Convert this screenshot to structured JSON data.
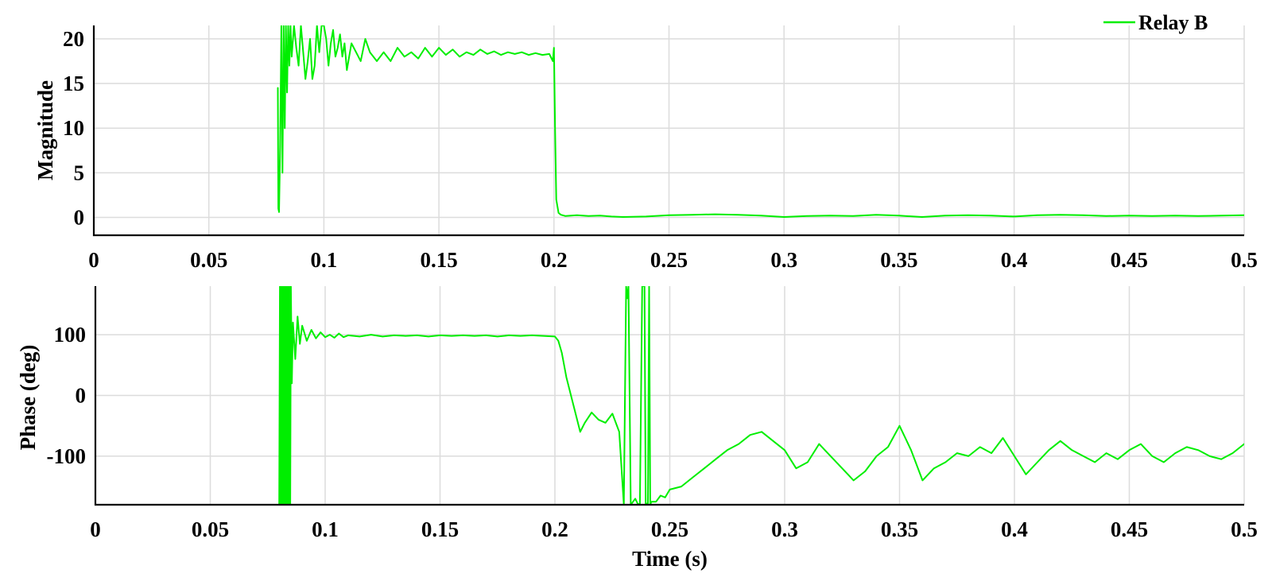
{
  "chart_data": [
    {
      "type": "line",
      "ylabel": "Magnitude",
      "xlabel": "",
      "xlim": [
        0,
        0.5
      ],
      "ylim": [
        -2,
        21.5
      ],
      "x_ticks": [
        "0",
        "0.05",
        "0.1",
        "0.15",
        "0.2",
        "0.25",
        "0.3",
        "0.35",
        "0.4",
        "0.45",
        "0.5"
      ],
      "y_ticks": [
        "0",
        "5",
        "10",
        "15",
        "20"
      ],
      "grid": true,
      "legend": "top-right",
      "series": [
        {
          "name": "Relay B",
          "color": "#00ee00",
          "x": [
            0.08,
            0.0802,
            0.0805,
            0.081,
            0.0815,
            0.082,
            0.0825,
            0.083,
            0.0835,
            0.084,
            0.0845,
            0.085,
            0.0855,
            0.086,
            0.087,
            0.088,
            0.089,
            0.09,
            0.091,
            0.092,
            0.093,
            0.094,
            0.095,
            0.096,
            0.097,
            0.098,
            0.099,
            0.1,
            0.101,
            0.102,
            0.103,
            0.104,
            0.105,
            0.106,
            0.107,
            0.108,
            0.109,
            0.11,
            0.112,
            0.114,
            0.116,
            0.118,
            0.12,
            0.123,
            0.126,
            0.129,
            0.132,
            0.135,
            0.138,
            0.141,
            0.144,
            0.147,
            0.15,
            0.153,
            0.156,
            0.159,
            0.162,
            0.165,
            0.168,
            0.171,
            0.174,
            0.177,
            0.18,
            0.183,
            0.186,
            0.189,
            0.192,
            0.195,
            0.198,
            0.1995,
            0.2,
            0.2005,
            0.201,
            0.202,
            0.203,
            0.205,
            0.21,
            0.215,
            0.22,
            0.225,
            0.23,
            0.24,
            0.25,
            0.26,
            0.27,
            0.28,
            0.29,
            0.3,
            0.31,
            0.32,
            0.33,
            0.34,
            0.35,
            0.36,
            0.37,
            0.38,
            0.39,
            0.4,
            0.41,
            0.42,
            0.43,
            0.44,
            0.45,
            0.46,
            0.47,
            0.48,
            0.49,
            0.5
          ],
          "y": [
            14.5,
            1,
            0.6,
            8,
            21.5,
            5,
            21.5,
            10,
            21.5,
            14,
            21.5,
            17,
            21.5,
            18,
            21.5,
            19,
            17,
            21.5,
            18.5,
            15.5,
            17.5,
            20,
            15.5,
            17,
            21.5,
            18.5,
            21.5,
            21.5,
            20,
            17,
            19.5,
            21,
            18,
            19,
            20.5,
            18,
            19.5,
            16.5,
            19.5,
            18.5,
            17.5,
            20,
            18.5,
            17.5,
            18.5,
            17.5,
            19,
            18,
            18.5,
            17.8,
            19,
            18,
            19,
            18.2,
            18.8,
            18,
            18.5,
            18.2,
            18.8,
            18.3,
            18.6,
            18.2,
            18.5,
            18.3,
            18.5,
            18.2,
            18.4,
            18.2,
            18.3,
            17.5,
            19,
            10,
            2,
            0.5,
            0.3,
            0.15,
            0.25,
            0.15,
            0.2,
            0.1,
            0.05,
            0.1,
            0.25,
            0.3,
            0.35,
            0.3,
            0.2,
            0.05,
            0.15,
            0.2,
            0.15,
            0.3,
            0.2,
            0.05,
            0.2,
            0.25,
            0.2,
            0.1,
            0.25,
            0.3,
            0.25,
            0.15,
            0.2,
            0.15,
            0.2,
            0.15,
            0.2,
            0.25
          ]
        }
      ]
    },
    {
      "type": "line",
      "ylabel": "Phase (deg)",
      "xlabel": "Time (s)",
      "xlim": [
        0,
        0.5
      ],
      "ylim": [
        -180,
        180
      ],
      "x_ticks": [
        "0",
        "0.05",
        "0.1",
        "0.15",
        "0.2",
        "0.25",
        "0.3",
        "0.35",
        "0.4",
        "0.45",
        "0.5"
      ],
      "y_ticks": [
        "-100",
        "0",
        "100"
      ],
      "grid": true,
      "series": [
        {
          "name": "",
          "color": "#00ee00",
          "x": [
            0.08,
            0.0803,
            0.0806,
            0.0809,
            0.0812,
            0.0815,
            0.0818,
            0.0821,
            0.0824,
            0.0827,
            0.083,
            0.0833,
            0.0836,
            0.0839,
            0.0842,
            0.0845,
            0.0848,
            0.0851,
            0.0855,
            0.086,
            0.087,
            0.088,
            0.089,
            0.09,
            0.092,
            0.094,
            0.096,
            0.098,
            0.1,
            0.102,
            0.104,
            0.106,
            0.108,
            0.11,
            0.115,
            0.12,
            0.125,
            0.13,
            0.135,
            0.14,
            0.145,
            0.15,
            0.155,
            0.16,
            0.165,
            0.17,
            0.175,
            0.18,
            0.185,
            0.19,
            0.195,
            0.2,
            0.2015,
            0.203,
            0.205,
            0.207,
            0.209,
            0.211,
            0.213,
            0.216,
            0.219,
            0.222,
            0.225,
            0.228,
            0.23,
            0.231,
            0.2315,
            0.232,
            0.233,
            0.234,
            0.235,
            0.236,
            0.237,
            0.238,
            0.239,
            0.2395,
            0.24,
            0.2405,
            0.241,
            0.2415,
            0.242,
            0.244,
            0.246,
            0.248,
            0.25,
            0.255,
            0.26,
            0.265,
            0.27,
            0.275,
            0.28,
            0.285,
            0.29,
            0.295,
            0.3,
            0.305,
            0.31,
            0.315,
            0.32,
            0.325,
            0.33,
            0.335,
            0.34,
            0.345,
            0.35,
            0.355,
            0.36,
            0.365,
            0.37,
            0.375,
            0.38,
            0.385,
            0.39,
            0.395,
            0.4,
            0.405,
            0.41,
            0.415,
            0.42,
            0.425,
            0.43,
            0.435,
            0.44,
            0.445,
            0.45,
            0.455,
            0.46,
            0.465,
            0.47,
            0.475,
            0.48,
            0.485,
            0.49,
            0.495,
            0.5
          ],
          "y": [
            -180,
            180,
            -180,
            180,
            -180,
            180,
            -180,
            180,
            -180,
            180,
            -180,
            180,
            -180,
            180,
            -180,
            180,
            -180,
            180,
            20,
            120,
            60,
            130,
            85,
            115,
            90,
            108,
            94,
            104,
            96,
            100,
            95,
            102,
            96,
            99,
            97,
            100,
            97,
            99,
            98,
            99,
            97,
            99,
            98,
            99,
            98,
            99,
            97,
            99,
            98,
            99,
            98,
            97,
            90,
            70,
            30,
            0,
            -30,
            -60,
            -45,
            -28,
            -40,
            -45,
            -30,
            -60,
            -180,
            180,
            160,
            180,
            -180,
            -175,
            -170,
            -178,
            -180,
            180,
            180,
            -180,
            -178,
            -180,
            180,
            -180,
            -175,
            -175,
            -165,
            -168,
            -155,
            -150,
            -135,
            -120,
            -105,
            -90,
            -80,
            -65,
            -60,
            -75,
            -90,
            -120,
            -110,
            -80,
            -100,
            -120,
            -140,
            -125,
            -100,
            -85,
            -50,
            -90,
            -140,
            -120,
            -110,
            -95,
            -100,
            -85,
            -95,
            -70,
            -100,
            -130,
            -110,
            -90,
            -75,
            -90,
            -100,
            -110,
            -95,
            -105,
            -90,
            -80,
            -100,
            -110,
            -95,
            -85,
            -90,
            -100,
            -105,
            -95,
            -80
          ]
        }
      ]
    }
  ]
}
